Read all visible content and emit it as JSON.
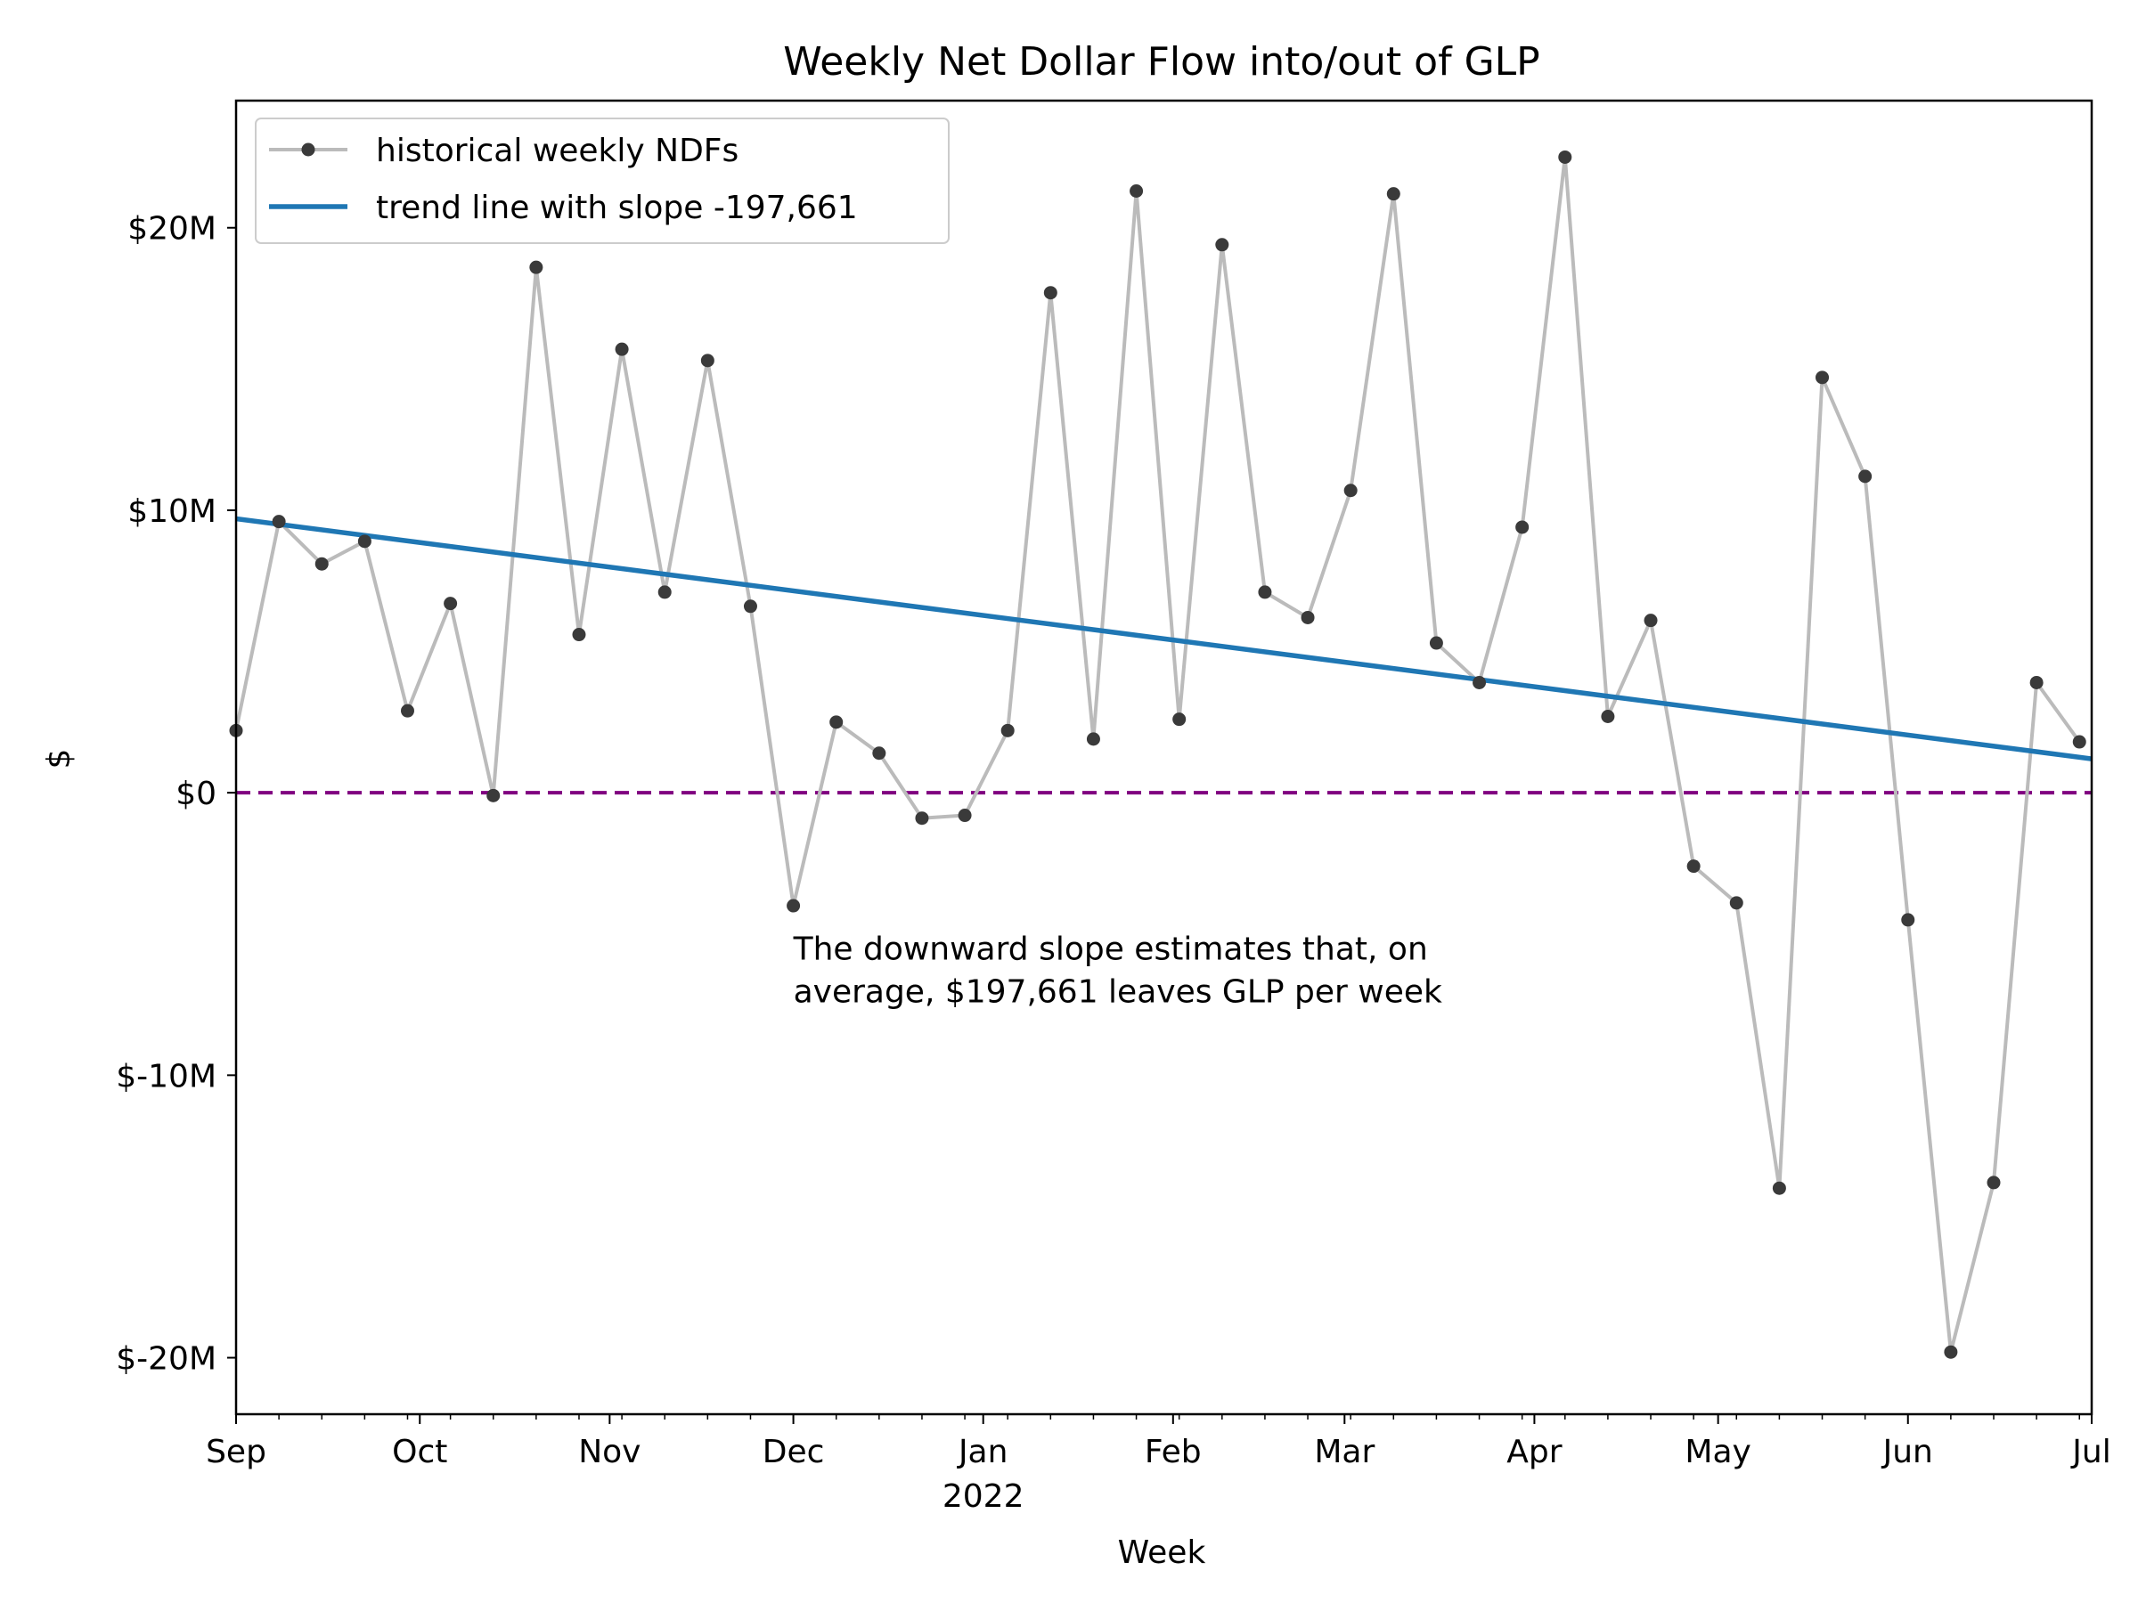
{
  "chart_data": {
    "type": "line",
    "title": "Weekly Net Dollar Flow into/out of GLP",
    "xlabel": "Week",
    "ylabel": "$",
    "x_range": [
      "2021-09-01",
      "2022-07-01"
    ],
    "ylim": [
      -22000000,
      24500000
    ],
    "x_ticks": [
      {
        "date": "2021-09-01",
        "label": "Sep",
        "sublabel": ""
      },
      {
        "date": "2021-10-01",
        "label": "Oct",
        "sublabel": ""
      },
      {
        "date": "2021-11-01",
        "label": "Nov",
        "sublabel": ""
      },
      {
        "date": "2021-12-01",
        "label": "Dec",
        "sublabel": ""
      },
      {
        "date": "2022-01-01",
        "label": "Jan",
        "sublabel": "2022"
      },
      {
        "date": "2022-02-01",
        "label": "Feb",
        "sublabel": ""
      },
      {
        "date": "2022-03-01",
        "label": "Mar",
        "sublabel": ""
      },
      {
        "date": "2022-04-01",
        "label": "Apr",
        "sublabel": ""
      },
      {
        "date": "2022-05-01",
        "label": "May",
        "sublabel": ""
      },
      {
        "date": "2022-06-01",
        "label": "Jun",
        "sublabel": ""
      },
      {
        "date": "2022-07-01",
        "label": "Jul",
        "sublabel": ""
      }
    ],
    "y_ticks": [
      {
        "value": 20000000,
        "label": "$20M"
      },
      {
        "value": 10000000,
        "label": "$10M"
      },
      {
        "value": 0,
        "label": "$0"
      },
      {
        "value": -10000000,
        "label": "$-10M"
      },
      {
        "value": -20000000,
        "label": "$-20M"
      }
    ],
    "series": [
      {
        "name": "historical weekly NDFs",
        "color": "#bbbbbb",
        "marker_color": "#3a3a3a",
        "points": [
          {
            "x": "2021-09-01",
            "y": 2200000
          },
          {
            "x": "2021-09-08",
            "y": 9600000
          },
          {
            "x": "2021-09-15",
            "y": 8100000
          },
          {
            "x": "2021-09-22",
            "y": 8900000
          },
          {
            "x": "2021-09-29",
            "y": 2900000
          },
          {
            "x": "2021-10-06",
            "y": 6700000
          },
          {
            "x": "2021-10-13",
            "y": -100000
          },
          {
            "x": "2021-10-20",
            "y": 18600000
          },
          {
            "x": "2021-10-27",
            "y": 5600000
          },
          {
            "x": "2021-11-03",
            "y": 15700000
          },
          {
            "x": "2021-11-10",
            "y": 7100000
          },
          {
            "x": "2021-11-17",
            "y": 15300000
          },
          {
            "x": "2021-11-24",
            "y": 6600000
          },
          {
            "x": "2021-12-01",
            "y": -4000000
          },
          {
            "x": "2021-12-08",
            "y": 2500000
          },
          {
            "x": "2021-12-15",
            "y": 1400000
          },
          {
            "x": "2021-12-22",
            "y": -900000
          },
          {
            "x": "2021-12-29",
            "y": -800000
          },
          {
            "x": "2022-01-05",
            "y": 2200000
          },
          {
            "x": "2022-01-12",
            "y": 17700000
          },
          {
            "x": "2022-01-19",
            "y": 1900000
          },
          {
            "x": "2022-01-26",
            "y": 21300000
          },
          {
            "x": "2022-02-02",
            "y": 2600000
          },
          {
            "x": "2022-02-09",
            "y": 19400000
          },
          {
            "x": "2022-02-16",
            "y": 7100000
          },
          {
            "x": "2022-02-23",
            "y": 6200000
          },
          {
            "x": "2022-03-02",
            "y": 10700000
          },
          {
            "x": "2022-03-09",
            "y": 21200000
          },
          {
            "x": "2022-03-16",
            "y": 5300000
          },
          {
            "x": "2022-03-23",
            "y": 3900000
          },
          {
            "x": "2022-03-30",
            "y": 9400000
          },
          {
            "x": "2022-04-06",
            "y": 22500000
          },
          {
            "x": "2022-04-13",
            "y": 2700000
          },
          {
            "x": "2022-04-20",
            "y": 6100000
          },
          {
            "x": "2022-04-27",
            "y": -2600000
          },
          {
            "x": "2022-05-04",
            "y": -3900000
          },
          {
            "x": "2022-05-11",
            "y": -14000000
          },
          {
            "x": "2022-05-18",
            "y": 14700000
          },
          {
            "x": "2022-05-25",
            "y": 11200000
          },
          {
            "x": "2022-06-01",
            "y": -4500000
          },
          {
            "x": "2022-06-08",
            "y": -19800000
          },
          {
            "x": "2022-06-15",
            "y": -13800000
          },
          {
            "x": "2022-06-22",
            "y": 3900000
          },
          {
            "x": "2022-06-29",
            "y": 1800000
          }
        ]
      },
      {
        "name": "trend line with slope -197,661",
        "color": "#1f77b4",
        "points": [
          {
            "x": "2021-09-01",
            "y": 9700000
          },
          {
            "x": "2022-07-01",
            "y": 1200000
          }
        ]
      }
    ],
    "reference_line": {
      "y": 0,
      "color": "#800080",
      "style": "dashed"
    },
    "annotation": {
      "lines": [
        "The downward slope estimates that, on",
        "average, $197,661 leaves GLP per week"
      ],
      "x": "2021-12-01",
      "y": -5900000
    },
    "legend": {
      "placement": "top-left"
    },
    "grid": false
  }
}
